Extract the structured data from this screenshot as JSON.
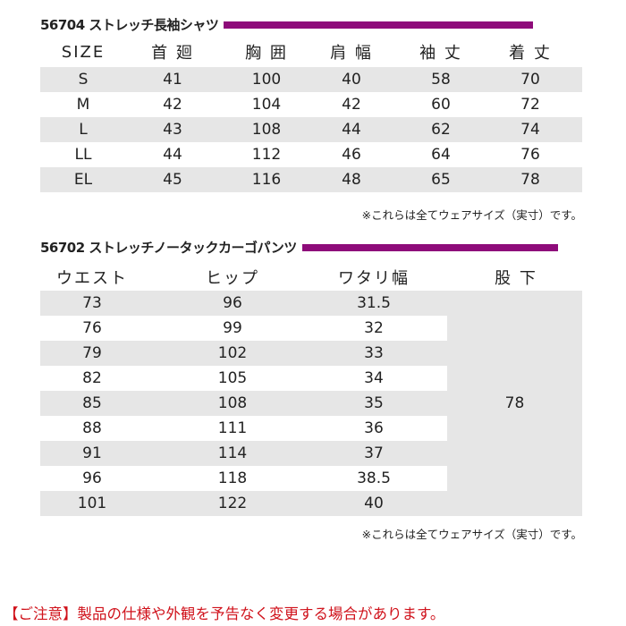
{
  "shirt": {
    "title": "56704 ストレッチ長袖シャツ",
    "headers": [
      "SIZE",
      "首 廻",
      "胸 囲",
      "肩 幅",
      "袖 丈",
      "着 丈"
    ],
    "rows": [
      [
        "S",
        "41",
        "100",
        "40",
        "58",
        "70"
      ],
      [
        "M",
        "42",
        "104",
        "42",
        "60",
        "72"
      ],
      [
        "L",
        "43",
        "108",
        "44",
        "62",
        "74"
      ],
      [
        "LL",
        "44",
        "112",
        "46",
        "64",
        "76"
      ],
      [
        "EL",
        "45",
        "116",
        "48",
        "65",
        "78"
      ]
    ],
    "note": "※これらは全てウェアサイズ（実寸）です。"
  },
  "pants": {
    "title": "56702 ストレッチノータックカーゴパンツ",
    "headers": [
      "ウエスト",
      "ヒップ",
      "ワタリ幅",
      "股 下"
    ],
    "rows": [
      [
        "73",
        "96",
        "31.5"
      ],
      [
        "76",
        "99",
        "32"
      ],
      [
        "79",
        "102",
        "33"
      ],
      [
        "82",
        "105",
        "34"
      ],
      [
        "85",
        "108",
        "35"
      ],
      [
        "88",
        "111",
        "36"
      ],
      [
        "91",
        "114",
        "37"
      ],
      [
        "96",
        "118",
        "38.5"
      ],
      [
        "101",
        "122",
        "40"
      ]
    ],
    "inseam": "78",
    "note": "※これらは全てウェアサイズ（実寸）です。"
  },
  "footer": "【ご注意】製品の仕様や外観を予告なく変更する場合があります。",
  "colors": {
    "accent": "#8e0b7a",
    "stripe": "#e6e6e6",
    "warning": "#d0121b"
  }
}
